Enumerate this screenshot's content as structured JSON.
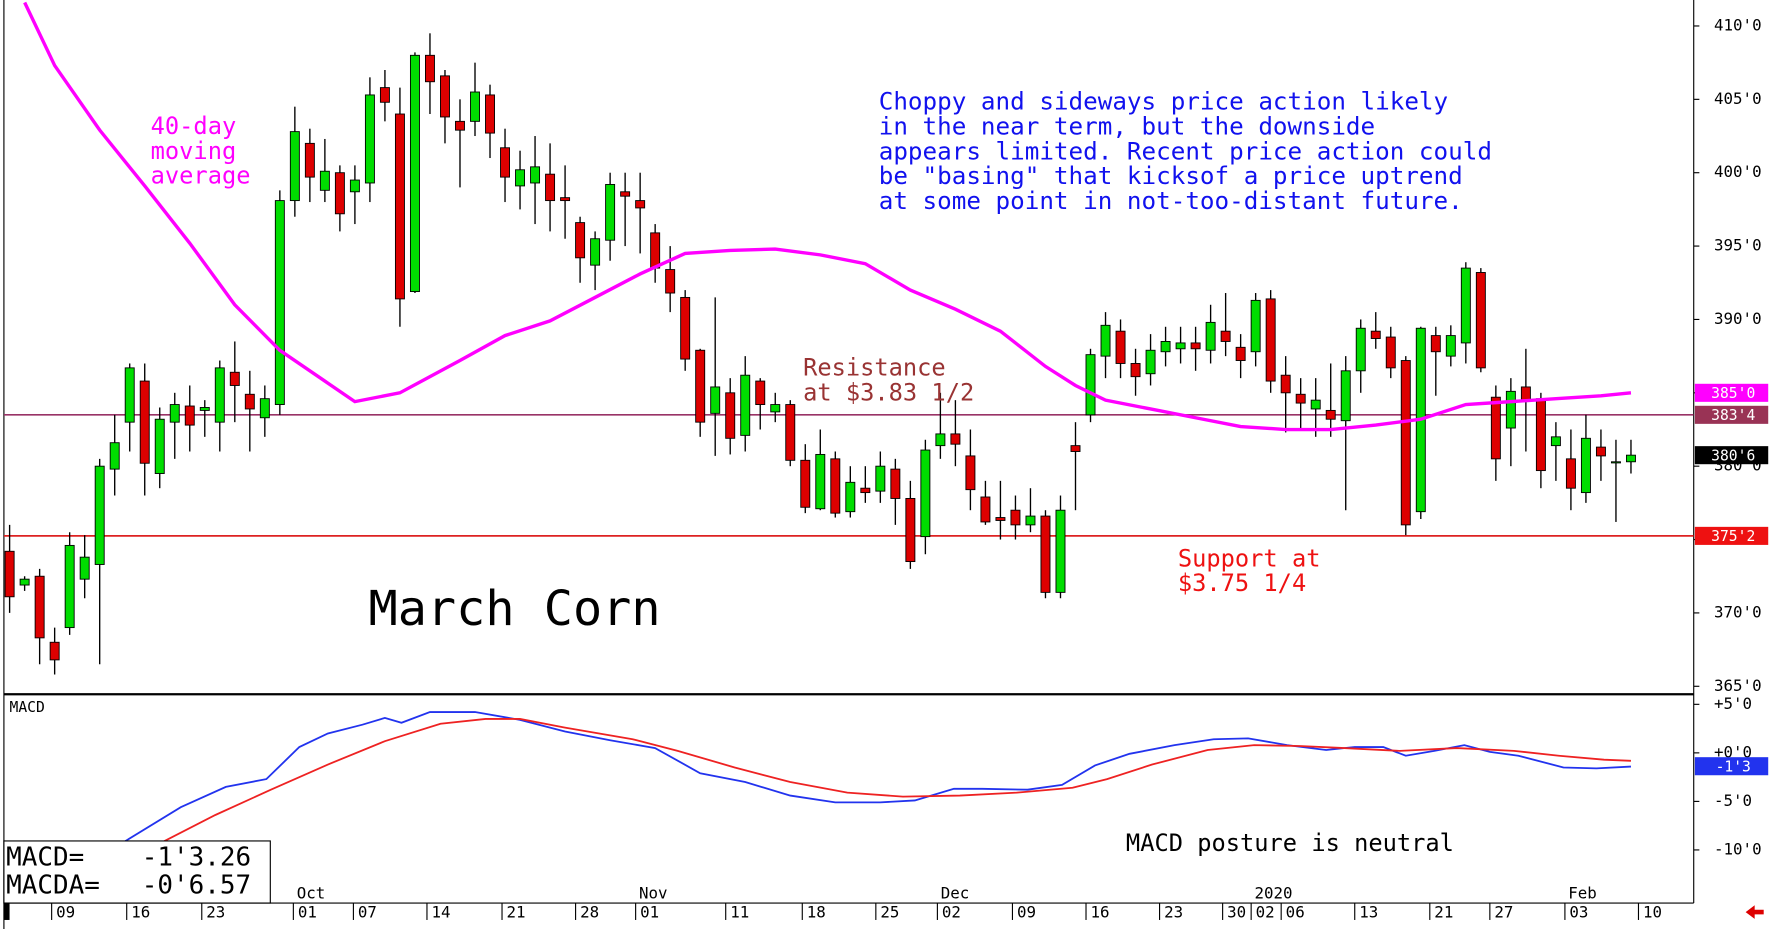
{
  "chart_data": [
    {
      "type": "candlestick",
      "title": "March Corn",
      "categories": [
        null,
        null,
        null,
        null,
        null,
        null,
        null,
        null,
        null,
        null,
        null,
        null,
        null,
        null,
        null,
        null,
        null,
        null,
        null,
        null,
        null,
        null,
        null,
        null,
        null,
        null,
        null,
        null,
        null,
        null,
        null,
        null,
        null,
        null,
        null,
        null,
        null,
        null,
        null,
        null,
        null,
        null,
        null,
        null,
        null,
        null,
        null,
        null,
        null,
        null,
        null,
        null,
        null,
        null,
        null,
        null,
        null,
        null,
        null,
        null,
        null,
        null,
        null,
        null,
        null,
        null,
        null,
        null,
        null,
        null,
        null,
        null,
        null,
        null,
        null,
        null,
        null,
        null,
        null,
        null,
        null,
        null,
        null,
        null,
        null,
        null,
        null,
        null,
        null,
        null,
        null,
        null,
        null,
        null,
        null,
        null,
        null,
        null,
        null,
        null,
        null,
        null,
        null,
        null,
        null,
        null,
        null,
        null,
        null
      ],
      "open": [
        374.2,
        371.9,
        372.5,
        368,
        369,
        372.3,
        373.3,
        379.8,
        383,
        385.8,
        379.5,
        383,
        384.1,
        383.8,
        383,
        386.4,
        384.9,
        383.3,
        384.2,
        398.1,
        402,
        398.8,
        400,
        398.7,
        399.3,
        405.8,
        404,
        391.9,
        408,
        406.6,
        403.5,
        403.5,
        405.3,
        401.7,
        399.1,
        399.3,
        399.9,
        398.3,
        396.6,
        393.7,
        395.4,
        398.7,
        398.1,
        395.9,
        393.4,
        391.5,
        387.9,
        383.6,
        385,
        382.1,
        385.8,
        383.7,
        384.2,
        380.4,
        377.1,
        380.5,
        376.9,
        378.5,
        378.3,
        379.8,
        377.8,
        375.2,
        381.4,
        382.2,
        380.7,
        377.9,
        376.5,
        377,
        376,
        376.6,
        371.4,
        381.4,
        383.5,
        387.5,
        389.2,
        387,
        386.3,
        387.8,
        388,
        388.4,
        387.9,
        389.2,
        388.1,
        387.8,
        391.4,
        386.2,
        384.9,
        383.9,
        383.8,
        383.1,
        386.5,
        389.2,
        388.8,
        387.2,
        376.9,
        388.9,
        387.5,
        388.4,
        393.2,
        384.7,
        382.6,
        385.4,
        384.6,
        381.4,
        380.5,
        378.2,
        381.3,
        380.3,
        380.3
      ],
      "high": [
        376,
        372.5,
        373,
        369,
        375.5,
        375.3,
        380.5,
        383.5,
        387,
        387,
        384,
        385,
        385.5,
        384.5,
        387.2,
        388.5,
        386.5,
        385.5,
        398.8,
        404.5,
        403,
        402.3,
        400.5,
        400.5,
        406.5,
        407,
        405.8,
        408.2,
        409.5,
        407,
        405,
        407.5,
        406,
        403,
        401.5,
        402.5,
        402,
        400.5,
        397,
        396,
        400,
        400,
        400,
        396.5,
        395,
        392,
        388,
        391.5,
        386,
        387.5,
        386,
        385,
        384.5,
        381.5,
        382.5,
        381,
        380,
        380,
        381,
        380.5,
        379,
        381.8,
        385,
        384.5,
        382.5,
        379,
        379,
        378,
        378.5,
        377,
        378,
        383,
        388,
        390.5,
        390,
        388,
        389,
        389.5,
        389.5,
        389.5,
        391,
        391.8,
        389,
        391.8,
        392,
        387.5,
        386,
        386,
        387,
        387.5,
        390,
        390.5,
        389.5,
        387.5,
        389.5,
        389.5,
        389.6,
        393.9,
        393.5,
        385.5,
        386,
        388,
        385,
        383,
        382.5,
        383.5,
        382.5,
        381.8,
        381.8
      ],
      "low": [
        370,
        371.5,
        366.5,
        365.8,
        368.5,
        371,
        366.5,
        378,
        381,
        378,
        378.5,
        380.5,
        381,
        382,
        381,
        383,
        381,
        382,
        383.5,
        397,
        398,
        398,
        396,
        396.5,
        398,
        403.5,
        389.5,
        391.8,
        404,
        402,
        399,
        402.5,
        401,
        398,
        397.5,
        396.5,
        396,
        395.5,
        392.5,
        392,
        394,
        395,
        394.5,
        392.5,
        390.5,
        386.5,
        382,
        380.7,
        380.8,
        381,
        382.5,
        383,
        380,
        376.8,
        377,
        376.5,
        376.5,
        377.5,
        377.5,
        376,
        373,
        374,
        380.5,
        380,
        377,
        376,
        375,
        375,
        375.5,
        371,
        371,
        377,
        383,
        386,
        386,
        384.8,
        385.5,
        386.8,
        387,
        386.5,
        387,
        387.5,
        386,
        386.8,
        385,
        382.3,
        382.5,
        382,
        382,
        377,
        385,
        388,
        386,
        375.3,
        376.4,
        384.8,
        386.8,
        387,
        386.4,
        379,
        380,
        381,
        378.5,
        379,
        377,
        377.5,
        379,
        376.2,
        379.5
      ],
      "close": [
        371.1,
        372.3,
        368.3,
        366.8,
        374.6,
        373.8,
        380,
        381.6,
        386.7,
        380.2,
        383.2,
        384.2,
        382.8,
        384,
        386.7,
        385.5,
        383.9,
        384.6,
        398.1,
        402.8,
        399.7,
        400.1,
        397.2,
        399.5,
        405.3,
        404.8,
        391.4,
        408,
        406.2,
        403.8,
        402.9,
        405.5,
        402.7,
        399.7,
        400.2,
        400.4,
        398.1,
        398.1,
        394.2,
        395.5,
        399.2,
        398.4,
        397.6,
        393.5,
        391.8,
        387.3,
        383,
        385.4,
        381.9,
        386.2,
        384.2,
        384.2,
        380.4,
        377.2,
        380.8,
        376.8,
        378.9,
        378.2,
        380,
        377.8,
        373.5,
        381.1,
        382.2,
        381.5,
        378.4,
        376.2,
        376.3,
        376,
        376.6,
        371.4,
        377,
        381,
        387.6,
        389.6,
        387,
        386.1,
        387.9,
        388.5,
        388.4,
        388,
        389.8,
        388.5,
        387.2,
        391.3,
        385.8,
        385,
        384.3,
        384.5,
        383.2,
        386.5,
        389.4,
        388.7,
        386.7,
        376,
        389.4,
        387.8,
        388.9,
        393.5,
        386.7,
        380.5,
        385.1,
        384.5,
        379.7,
        382,
        378.5,
        381.9,
        380.7,
        380.3,
        380.75
      ],
      "up_color": "#00dd00",
      "down_color": "#dd0000",
      "series": [
        {
          "name": "40-day moving average",
          "color": "#ff00ff",
          "x": [
            1,
            3,
            6,
            9,
            12,
            15,
            18,
            21,
            23,
            26,
            30,
            33,
            36,
            39,
            42,
            45,
            48,
            51,
            54,
            57,
            60,
            63,
            66,
            69,
            71,
            73,
            76,
            79,
            82,
            85,
            88,
            91,
            94,
            97,
            100,
            103,
            106,
            108
          ],
          "values": [
            411.6,
            407.3,
            402.9,
            399.1,
            395.2,
            391,
            387.9,
            385.8,
            384.4,
            385,
            387.2,
            388.9,
            389.9,
            391.5,
            393.1,
            394.5,
            394.7,
            394.8,
            394.4,
            393.8,
            392,
            390.7,
            389.2,
            386.8,
            385.5,
            384.5,
            383.9,
            383.3,
            382.7,
            382.5,
            382.5,
            382.8,
            383.2,
            384.2,
            384.4,
            384.6,
            384.8,
            385
          ]
        }
      ],
      "xlim": [
        -0.38,
        112.18
      ],
      "ylim": [
        364.46,
        411.77
      ],
      "yticks": [
        {
          "value": 365,
          "label": "365'0"
        },
        {
          "value": 370,
          "label": "370'0"
        },
        {
          "value": 375,
          "label": "375'0"
        },
        {
          "value": 380,
          "label": "380'0"
        },
        {
          "value": 385,
          "label": "385'0"
        },
        {
          "value": 390,
          "label": "390'0"
        },
        {
          "value": 395,
          "label": "395'0"
        },
        {
          "value": 400,
          "label": "400'0"
        },
        {
          "value": 405,
          "label": "405'0"
        },
        {
          "value": 410,
          "label": "410'0"
        }
      ],
      "levels": [
        {
          "value": 383.5,
          "color": "#993366"
        },
        {
          "value": 375.25,
          "color": "#dd2222"
        }
      ],
      "price_labels": [
        {
          "value": 385,
          "label": "385'0",
          "color": "#ff00ff"
        },
        {
          "value": 383.5,
          "label": "383'4",
          "color": "#993355"
        },
        {
          "value": 380.75,
          "label": "380'6",
          "color": "#000000"
        },
        {
          "value": 375.25,
          "label": "375'2",
          "color": "#ee1111"
        }
      ],
      "annotations": [
        {
          "lines": [
            "40-day",
            "moving",
            "average"
          ],
          "color": "#ff00ff"
        },
        {
          "lines": [
            "Choppy and sideways price action likely",
            "in the near term, but the downside",
            "appears limited. Recent price action could",
            "be \"basing\" that kicksof a price uptrend",
            "at some point in not-too-distant future."
          ],
          "color": "#1111ee"
        },
        {
          "lines": [
            "Resistance",
            "at $3.83 1/2"
          ],
          "color": "#993333"
        },
        {
          "lines": [
            "Support at",
            "$3.75 1/4"
          ],
          "color": "#ee1111"
        }
      ]
    },
    {
      "type": "line",
      "title": "MACD",
      "series": [
        {
          "name": "MACD",
          "color": "#2233ee",
          "x": [
            7.7,
            11.4,
            14.4,
            17.1,
            19.3,
            21.2,
            23.5,
            25,
            26.1,
            28,
            31,
            34,
            37,
            40,
            43,
            46,
            49,
            52,
            55,
            58,
            60.3,
            62.9,
            64.8,
            67.8,
            70.1,
            72.3,
            74.6,
            77.6,
            80.2,
            82.5,
            85.1,
            87.7,
            89.6,
            91.5,
            93,
            94.9,
            96.9,
            98.6,
            100.5,
            103.5,
            105.7,
            108
          ],
          "values": [
            -9.1,
            -5.6,
            -3.5,
            -2.7,
            0.6,
            2,
            2.9,
            3.6,
            3.1,
            4.2,
            4.2,
            3.4,
            2.2,
            1.3,
            0.5,
            -2.1,
            -3,
            -4.4,
            -5.1,
            -5.1,
            -4.9,
            -3.7,
            -3.7,
            -3.8,
            -3.3,
            -1.3,
            -0.1,
            0.8,
            1.4,
            1.5,
            0.8,
            0.3,
            0.6,
            0.6,
            -0.3,
            0.2,
            0.8,
            0.1,
            -0.3,
            -1.5,
            -1.6,
            -1.41
          ]
        },
        {
          "name": "MACDA",
          "color": "#ee2222",
          "x": [
            10.3,
            13.7,
            17.4,
            21.2,
            25,
            28.7,
            31.7,
            34,
            37,
            41.5,
            44.5,
            48.3,
            52,
            55.8,
            59.5,
            63.3,
            67.1,
            70.8,
            73.1,
            76.1,
            79.8,
            82.9,
            85.9,
            88.9,
            92.6,
            96.4,
            100.2,
            103.2,
            106.2,
            108
          ],
          "values": [
            -9.1,
            -6.4,
            -3.8,
            -1.2,
            1.2,
            3,
            3.5,
            3.5,
            2.6,
            1.4,
            0.2,
            -1.5,
            -3,
            -4.1,
            -4.5,
            -4.4,
            -4.1,
            -3.6,
            -2.7,
            -1.2,
            0.3,
            0.8,
            0.7,
            0.5,
            0.2,
            0.5,
            0.2,
            -0.3,
            -0.7,
            -0.82
          ]
        }
      ],
      "xlim": [
        -0.38,
        112.18
      ],
      "ylim": [
        -15.47,
        5.81
      ],
      "yticks": [
        {
          "value": 5,
          "label": "+5'0"
        },
        {
          "value": 0,
          "label": "+0'0"
        },
        {
          "value": -5,
          "label": "-5'0"
        },
        {
          "value": -10,
          "label": "-10'0"
        }
      ],
      "price_labels": [
        {
          "value": -1.375,
          "label": "-1'3",
          "color": "#2233ee"
        }
      ],
      "readout": [
        {
          "label": "MACD=",
          "value": -1.4075,
          "value_label": "-1'3.26"
        },
        {
          "label": "MACDA=",
          "value": -0.82125,
          "value_label": "-0'6.57"
        }
      ],
      "annotations": [
        {
          "lines": [
            "MACD posture is neutral"
          ],
          "color": "#000000"
        }
      ],
      "xticks": [
        {
          "value": 2.8,
          "label": "09"
        },
        {
          "value": 7.8,
          "label": "16"
        },
        {
          "value": 12.8,
          "label": "23"
        },
        {
          "value": 18.9,
          "label": "01"
        },
        {
          "value": 22.9,
          "label": "07"
        },
        {
          "value": 27.8,
          "label": "14"
        },
        {
          "value": 32.8,
          "label": "21"
        },
        {
          "value": 37.7,
          "label": "28"
        },
        {
          "value": 41.7,
          "label": "01"
        },
        {
          "value": 47.7,
          "label": "11"
        },
        {
          "value": 52.8,
          "label": "18"
        },
        {
          "value": 57.7,
          "label": "25"
        },
        {
          "value": 61.8,
          "label": "02"
        },
        {
          "value": 66.8,
          "label": "09"
        },
        {
          "value": 71.7,
          "label": "16"
        },
        {
          "value": 76.6,
          "label": "23"
        },
        {
          "value": 80.8,
          "label": "30"
        },
        {
          "value": 82.7,
          "label": "02"
        },
        {
          "value": 84.7,
          "label": "06"
        },
        {
          "value": 89.6,
          "label": "13"
        },
        {
          "value": 94.6,
          "label": "21"
        },
        {
          "value": 98.6,
          "label": "27"
        },
        {
          "value": 103.6,
          "label": "03"
        },
        {
          "value": 108.5,
          "label": "10"
        }
      ],
      "month_labels": [
        {
          "value": 18.9,
          "label": "Oct"
        },
        {
          "value": 41.7,
          "label": "Nov"
        },
        {
          "value": 61.8,
          "label": "Dec"
        },
        {
          "value": 82.7,
          "label": "2020"
        },
        {
          "value": 103.6,
          "label": "Feb"
        }
      ]
    }
  ]
}
